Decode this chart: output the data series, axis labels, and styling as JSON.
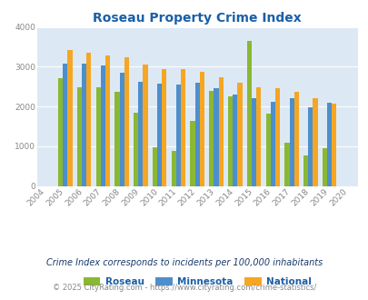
{
  "title": "Roseau Property Crime Index",
  "years": [
    2004,
    2005,
    2006,
    2007,
    2008,
    2009,
    2010,
    2011,
    2012,
    2013,
    2014,
    2015,
    2016,
    2017,
    2018,
    2019,
    2020
  ],
  "roseau": [
    0,
    2720,
    2490,
    2490,
    2360,
    1850,
    970,
    880,
    1640,
    2400,
    2250,
    3640,
    1820,
    1090,
    770,
    950,
    0
  ],
  "minnesota": [
    0,
    3080,
    3080,
    3030,
    2860,
    2630,
    2570,
    2560,
    2590,
    2450,
    2290,
    2200,
    2120,
    2200,
    1990,
    2090,
    0
  ],
  "national": [
    0,
    3420,
    3360,
    3290,
    3230,
    3050,
    2950,
    2930,
    2870,
    2740,
    2600,
    2490,
    2450,
    2380,
    2210,
    2080,
    0
  ],
  "roseau_color": "#8ab832",
  "minnesota_color": "#4d8fcc",
  "national_color": "#f5a623",
  "bg_color": "#dce9f5",
  "ylim": [
    0,
    4000
  ],
  "yticks": [
    0,
    1000,
    2000,
    3000,
    4000
  ],
  "subtitle": "Crime Index corresponds to incidents per 100,000 inhabitants",
  "footer": "© 2025 CityRating.com - https://www.cityrating.com/crime-statistics/",
  "bar_width": 0.25,
  "title_color": "#1a5fa8",
  "tick_color": "#888888",
  "legend_text_color": "#1a5fa8",
  "subtitle_color": "#1a3a6a",
  "footer_color": "#888888"
}
